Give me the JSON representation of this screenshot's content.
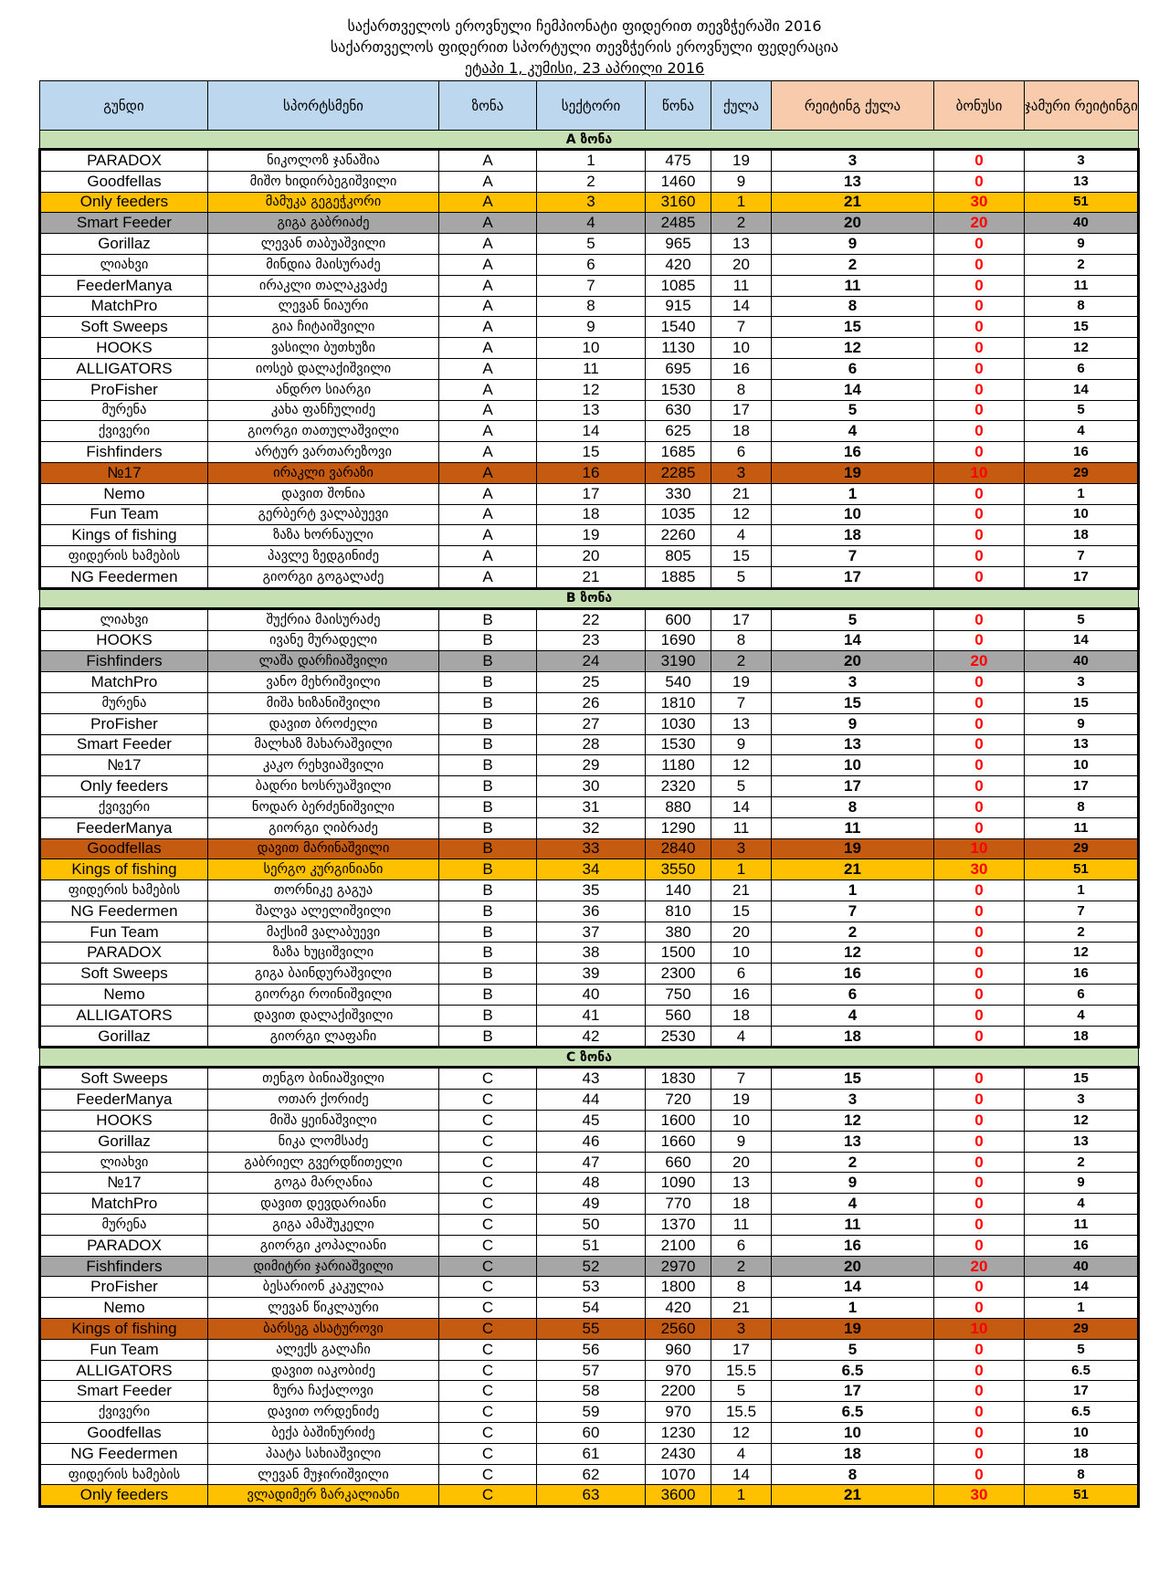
{
  "title": {
    "line1": "საქართველოს ეროვნული ჩემპიონატი ფიდერით თევზჭერაში 2016",
    "line2": "საქართველოს ფიდერით სპორტული თევზჭერის ეროვნული ფედერაცია",
    "line3": "ეტაპი 1,  კუმისი, 23 აპრილი 2016"
  },
  "headers": [
    "გუნდი",
    "სპორტსმენი",
    "ზონა",
    "სექტორი",
    "წონა",
    "ქულა",
    "რეიტინგ ქულა",
    "ბონუსი",
    "ჯამური რეიტინგი"
  ],
  "colors": {
    "header": "#BDD7EE",
    "header_rating": "#F8CBAD",
    "zone": "#C6E0B4",
    "gold": "#FFC000",
    "grey": "#A6A6A6",
    "orange": "#C55A11",
    "bonus": "#FF0000"
  },
  "zones": [
    {
      "label": "A ზონა",
      "rows": [
        [
          "PARADOX",
          "ნიკოლოზ ჯანაშია",
          "A",
          "1",
          "475",
          "19",
          "3",
          "0",
          "3",
          ""
        ],
        [
          "Goodfellas",
          "მიშო ხიდირბეგიშვილი",
          "A",
          "2",
          "1460",
          "9",
          "13",
          "0",
          "13",
          ""
        ],
        [
          "Only feeders",
          "მამუკა გეგეჭკორი",
          "A",
          "3",
          "3160",
          "1",
          "21",
          "30",
          "51",
          "gold"
        ],
        [
          "Smart Feeder",
          "გიგა გაბრიაძე",
          "A",
          "4",
          "2485",
          "2",
          "20",
          "20",
          "40",
          "grey"
        ],
        [
          "Gorillaz",
          "ლევან თაბუაშვილი",
          "A",
          "5",
          "965",
          "13",
          "9",
          "0",
          "9",
          ""
        ],
        [
          "ლიახვი",
          "მინდია მაისურაძე",
          "A",
          "6",
          "420",
          "20",
          "2",
          "0",
          "2",
          ""
        ],
        [
          "FeederManya",
          "ირაკლი თალაკვაძე",
          "A",
          "7",
          "1085",
          "11",
          "11",
          "0",
          "11",
          ""
        ],
        [
          "MatchPro",
          "ლევან ნიაური",
          "A",
          "8",
          "915",
          "14",
          "8",
          "0",
          "8",
          ""
        ],
        [
          "Soft Sweeps",
          "გია ჩიტაიშვილი",
          "A",
          "9",
          "1540",
          "7",
          "15",
          "0",
          "15",
          ""
        ],
        [
          "HOOKS",
          "ვასილი ბუთხუზი",
          "A",
          "10",
          "1130",
          "10",
          "12",
          "0",
          "12",
          ""
        ],
        [
          "ALLIGATORS",
          "იოსებ დალაქიშვილი",
          "A",
          "11",
          "695",
          "16",
          "6",
          "0",
          "6",
          ""
        ],
        [
          "ProFisher",
          "ანდრო სიარგი",
          "A",
          "12",
          "1530",
          "8",
          "14",
          "0",
          "14",
          ""
        ],
        [
          "მურენა",
          "კახა ფანჩულიძე",
          "A",
          "13",
          "630",
          "17",
          "5",
          "0",
          "5",
          ""
        ],
        [
          "ქვივერი",
          "გიორგი თათულაშვილი",
          "A",
          "14",
          "625",
          "18",
          "4",
          "0",
          "4",
          ""
        ],
        [
          "Fishfinders",
          "არტურ ვართარეზოვი",
          "A",
          "15",
          "1685",
          "6",
          "16",
          "0",
          "16",
          ""
        ],
        [
          "№17",
          "ირაკლი ვარაზი",
          "A",
          "16",
          "2285",
          "3",
          "19",
          "10",
          "29",
          "orange"
        ],
        [
          "Nemo",
          "დავით შონია",
          "A",
          "17",
          "330",
          "21",
          "1",
          "0",
          "1",
          ""
        ],
        [
          "Fun Team",
          "გერბერტ ვალაბუევი",
          "A",
          "18",
          "1035",
          "12",
          "10",
          "0",
          "10",
          ""
        ],
        [
          "Kings of fishing",
          "ზაზა ხორნაული",
          "A",
          "19",
          "2260",
          "4",
          "18",
          "0",
          "18",
          ""
        ],
        [
          "ფიდერის ხამების",
          "პავლე ზედგინიძე",
          "A",
          "20",
          "805",
          "15",
          "7",
          "0",
          "7",
          ""
        ],
        [
          "NG Feedermen",
          "გიორგი გოგალაძე",
          "A",
          "21",
          "1885",
          "5",
          "17",
          "0",
          "17",
          ""
        ]
      ]
    },
    {
      "label": "B ზონა",
      "rows": [
        [
          "ლიახვი",
          "შუქრია მაისურაძე",
          "B",
          "22",
          "600",
          "17",
          "5",
          "0",
          "5",
          ""
        ],
        [
          "HOOKS",
          "ივანე მურადელი",
          "B",
          "23",
          "1690",
          "8",
          "14",
          "0",
          "14",
          ""
        ],
        [
          "Fishfinders",
          "ლაშა  დარჩიაშვილი",
          "B",
          "24",
          "3190",
          "2",
          "20",
          "20",
          "40",
          "grey"
        ],
        [
          "MatchPro",
          "ვანო მეხრიშვილი",
          "B",
          "25",
          "540",
          "19",
          "3",
          "0",
          "3",
          ""
        ],
        [
          "მურენა",
          "მიშა ხიზანიშვილი",
          "B",
          "26",
          "1810",
          "7",
          "15",
          "0",
          "15",
          ""
        ],
        [
          "ProFisher",
          "დავით ბროძელი",
          "B",
          "27",
          "1030",
          "13",
          "9",
          "0",
          "9",
          ""
        ],
        [
          "Smart Feeder",
          "მალხაზ მახარაშვილი",
          "B",
          "28",
          "1530",
          "9",
          "13",
          "0",
          "13",
          ""
        ],
        [
          "№17",
          "კაკო რეხვიაშვილი",
          "B",
          "29",
          "1180",
          "12",
          "10",
          "0",
          "10",
          ""
        ],
        [
          "Only feeders",
          "ბადრი ხოსრუაშვილი",
          "B",
          "30",
          "2320",
          "5",
          "17",
          "0",
          "17",
          ""
        ],
        [
          "ქვივერი",
          "ნოდარ ბერძენიშვილი",
          "B",
          "31",
          "880",
          "14",
          "8",
          "0",
          "8",
          ""
        ],
        [
          "FeederManya",
          "გიორგი ღიბრაძე",
          "B",
          "32",
          "1290",
          "11",
          "11",
          "0",
          "11",
          ""
        ],
        [
          "Goodfellas",
          "დავით მარინაშვილი",
          "B",
          "33",
          "2840",
          "3",
          "19",
          "10",
          "29",
          "orange"
        ],
        [
          "Kings of fishing",
          "სერგო კურგინიანი",
          "B",
          "34",
          "3550",
          "1",
          "21",
          "30",
          "51",
          "gold"
        ],
        [
          "ფიდერის ხამების",
          "თორნიკე გაგუა",
          "B",
          "35",
          "140",
          "21",
          "1",
          "0",
          "1",
          ""
        ],
        [
          "NG Feedermen",
          "შალვა ალელიშვილი",
          "B",
          "36",
          "810",
          "15",
          "7",
          "0",
          "7",
          ""
        ],
        [
          "Fun Team",
          "მაქსიმ ვალაბუევი",
          "B",
          "37",
          "380",
          "20",
          "2",
          "0",
          "2",
          ""
        ],
        [
          "PARADOX",
          "ზაზა ხუციშვილი",
          "B",
          "38",
          "1500",
          "10",
          "12",
          "0",
          "12",
          ""
        ],
        [
          "Soft Sweeps",
          "გიგა ბაინდურაშვილი",
          "B",
          "39",
          "2300",
          "6",
          "16",
          "0",
          "16",
          ""
        ],
        [
          "Nemo",
          "გიორგი როინიშვილი",
          "B",
          "40",
          "750",
          "16",
          "6",
          "0",
          "6",
          ""
        ],
        [
          "ALLIGATORS",
          "დავით დალაქიშვილი",
          "B",
          "41",
          "560",
          "18",
          "4",
          "0",
          "4",
          ""
        ],
        [
          "Gorillaz",
          "გიორგი ლაფაჩი",
          "B",
          "42",
          "2530",
          "4",
          "18",
          "0",
          "18",
          ""
        ]
      ]
    },
    {
      "label": "C ზონა",
      "rows": [
        [
          "Soft Sweeps",
          "თენგო ბინიაშვილი",
          "C",
          "43",
          "1830",
          "7",
          "15",
          "0",
          "15",
          ""
        ],
        [
          "FeederManya",
          "ოთარ ქორიძე",
          "C",
          "44",
          "720",
          "19",
          "3",
          "0",
          "3",
          ""
        ],
        [
          "HOOKS",
          "მიშა ყეინაშვილი",
          "C",
          "45",
          "1600",
          "10",
          "12",
          "0",
          "12",
          ""
        ],
        [
          "Gorillaz",
          "ნიკა ლომსაძე",
          "C",
          "46",
          "1660",
          "9",
          "13",
          "0",
          "13",
          ""
        ],
        [
          "ლიახვი",
          "გაბრიელ გვერდწითელი",
          "C",
          "47",
          "660",
          "20",
          "2",
          "0",
          "2",
          ""
        ],
        [
          "№17",
          "გოგა მარღანია",
          "C",
          "48",
          "1090",
          "13",
          "9",
          "0",
          "9",
          ""
        ],
        [
          "MatchPro",
          "დავით დევდარიანი",
          "C",
          "49",
          "770",
          "18",
          "4",
          "0",
          "4",
          ""
        ],
        [
          "მურენა",
          "გიგა ამაშუკელი",
          "C",
          "50",
          "1370",
          "11",
          "11",
          "0",
          "11",
          ""
        ],
        [
          "PARADOX",
          "გიორგი კოპალიანი",
          "C",
          "51",
          "2100",
          "6",
          "16",
          "0",
          "16",
          ""
        ],
        [
          "Fishfinders",
          "დიმიტრი ჯარიაშვილი",
          "C",
          "52",
          "2970",
          "2",
          "20",
          "20",
          "40",
          "grey"
        ],
        [
          "ProFisher",
          "ბესარიონ კაკულია",
          "C",
          "53",
          "1800",
          "8",
          "14",
          "0",
          "14",
          ""
        ],
        [
          "Nemo",
          "ლევან წიკლაური",
          "C",
          "54",
          "420",
          "21",
          "1",
          "0",
          "1",
          ""
        ],
        [
          "Kings of fishing",
          "ბარსეგ ასატუროვი",
          "C",
          "55",
          "2560",
          "3",
          "19",
          "10",
          "29",
          "orange"
        ],
        [
          "Fun Team",
          "ალექს გალაჩი",
          "C",
          "56",
          "960",
          "17",
          "5",
          "0",
          "5",
          ""
        ],
        [
          "ALLIGATORS",
          "დავით იაკობიძე",
          "C",
          "57",
          "970",
          "15.5",
          "6.5",
          "0",
          "6.5",
          ""
        ],
        [
          "Smart Feeder",
          "ზურა ჩაქალოვი",
          "C",
          "58",
          "2200",
          "5",
          "17",
          "0",
          "17",
          ""
        ],
        [
          "ქვივერი",
          "დავით ორდენიძე",
          "C",
          "59",
          "970",
          "15.5",
          "6.5",
          "0",
          "6.5",
          ""
        ],
        [
          "Goodfellas",
          "ბექა ბაშინურიძე",
          "C",
          "60",
          "1230",
          "12",
          "10",
          "0",
          "10",
          ""
        ],
        [
          "NG Feedermen",
          "პაატა სახიაშვილი",
          "C",
          "61",
          "2430",
          "4",
          "18",
          "0",
          "18",
          ""
        ],
        [
          "ფიდერის ხამების",
          "ლევან მუჯირიშვილი",
          "C",
          "62",
          "1070",
          "14",
          "8",
          "0",
          "8",
          ""
        ],
        [
          "Only feeders",
          "ვლადიმერ ზარკალიანი",
          "C",
          "63",
          "3600",
          "1",
          "21",
          "30",
          "51",
          "gold"
        ]
      ]
    }
  ]
}
